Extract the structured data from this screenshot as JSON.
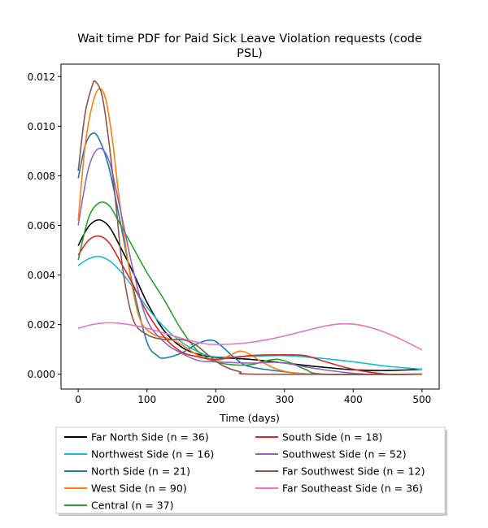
{
  "chart_data": {
    "type": "line",
    "title_line1": "Wait time PDF for Paid Sick Leave Violation  requests (code",
    "title_line2": "PSL)",
    "xlabel": "Time (days)",
    "ylabel": "",
    "xlim": [
      -25,
      525
    ],
    "ylim": [
      -0.0006,
      0.0125
    ],
    "xticks": [
      0,
      100,
      200,
      300,
      400,
      500
    ],
    "xtick_labels": [
      "0",
      "100",
      "200",
      "300",
      "400",
      "500"
    ],
    "yticks": [
      0.0,
      0.002,
      0.004,
      0.006,
      0.008,
      0.01,
      0.012
    ],
    "ytick_labels": [
      "0.000",
      "0.002",
      "0.004",
      "0.006",
      "0.008",
      "0.010",
      "0.012"
    ],
    "grid": false,
    "legend_placement": "below",
    "series": [
      {
        "name": "Far North Side (n = 36)",
        "color": "#000000",
        "points": [
          [
            0,
            0.00518
          ],
          [
            15,
            0.00595
          ],
          [
            30,
            0.00622
          ],
          [
            45,
            0.00595
          ],
          [
            60,
            0.0052
          ],
          [
            80,
            0.0041
          ],
          [
            100,
            0.0029
          ],
          [
            125,
            0.00175
          ],
          [
            150,
            0.0011
          ],
          [
            175,
            0.0008
          ],
          [
            200,
            0.00068
          ],
          [
            250,
            0.0006
          ],
          [
            300,
            0.00045
          ],
          [
            350,
            0.0003
          ],
          [
            400,
            0.00018
          ],
          [
            450,
            0.00015
          ],
          [
            500,
            0.0002
          ]
        ]
      },
      {
        "name": "Northwest Side (n = 16)",
        "color": "#17becf",
        "points": [
          [
            0,
            0.00438
          ],
          [
            15,
            0.00465
          ],
          [
            30,
            0.00475
          ],
          [
            45,
            0.00458
          ],
          [
            60,
            0.0042
          ],
          [
            80,
            0.0035
          ],
          [
            100,
            0.0027
          ],
          [
            125,
            0.0019
          ],
          [
            150,
            0.0013
          ],
          [
            175,
            0.0009
          ],
          [
            200,
            0.0007
          ],
          [
            250,
            0.00072
          ],
          [
            300,
            0.00075
          ],
          [
            350,
            0.00065
          ],
          [
            400,
            0.0005
          ],
          [
            450,
            0.00032
          ],
          [
            500,
            0.0002
          ]
        ]
      },
      {
        "name": "North Side (n = 21)",
        "color": "#1f77b4",
        "points": [
          [
            0,
            0.0079
          ],
          [
            10,
            0.0092
          ],
          [
            20,
            0.0097
          ],
          [
            30,
            0.0095
          ],
          [
            45,
            0.0083
          ],
          [
            60,
            0.0063
          ],
          [
            80,
            0.0035
          ],
          [
            100,
            0.0013
          ],
          [
            115,
            0.00075
          ],
          [
            125,
            0.00065
          ],
          [
            150,
            0.00085
          ],
          [
            175,
            0.00125
          ],
          [
            195,
            0.00137
          ],
          [
            210,
            0.0011
          ],
          [
            230,
            0.0006
          ],
          [
            250,
            0.0003
          ],
          [
            300,
            0.0001
          ],
          [
            350,
            0.0
          ],
          [
            500,
            0.0
          ]
        ]
      },
      {
        "name": "West Side (n = 90)",
        "color": "#ff7f0e",
        "points": [
          [
            0,
            0.0062
          ],
          [
            10,
            0.0092
          ],
          [
            20,
            0.0108
          ],
          [
            30,
            0.0115
          ],
          [
            40,
            0.0111
          ],
          [
            50,
            0.0094
          ],
          [
            60,
            0.007
          ],
          [
            75,
            0.0041
          ],
          [
            90,
            0.0022
          ],
          [
            110,
            0.0016
          ],
          [
            130,
            0.00145
          ],
          [
            150,
            0.0012
          ],
          [
            175,
            0.00075
          ],
          [
            200,
            0.00055
          ],
          [
            220,
            0.00075
          ],
          [
            235,
            0.00093
          ],
          [
            250,
            0.0008
          ],
          [
            270,
            0.00045
          ],
          [
            300,
            0.00012
          ],
          [
            350,
            0.0
          ],
          [
            500,
            0.0
          ]
        ]
      },
      {
        "name": "Central (n = 37)",
        "color": "#2ca02c",
        "points": [
          [
            0,
            0.0046
          ],
          [
            15,
            0.0063
          ],
          [
            30,
            0.0069
          ],
          [
            45,
            0.0068
          ],
          [
            60,
            0.0061
          ],
          [
            80,
            0.0051
          ],
          [
            100,
            0.0041
          ],
          [
            125,
            0.003
          ],
          [
            150,
            0.0018
          ],
          [
            175,
            0.0009
          ],
          [
            200,
            0.0005
          ],
          [
            225,
            0.00038
          ],
          [
            250,
            0.00038
          ],
          [
            275,
            0.00055
          ],
          [
            290,
            0.0006
          ],
          [
            310,
            0.00045
          ],
          [
            330,
            0.0002
          ],
          [
            360,
            0.0
          ],
          [
            500,
            0.0
          ]
        ]
      },
      {
        "name": "South Side (n = 18)",
        "color": "#d62728",
        "points": [
          [
            0,
            0.0048
          ],
          [
            15,
            0.0054
          ],
          [
            30,
            0.00557
          ],
          [
            45,
            0.0053
          ],
          [
            60,
            0.0046
          ],
          [
            80,
            0.0036
          ],
          [
            100,
            0.0025
          ],
          [
            125,
            0.0015
          ],
          [
            150,
            0.0009
          ],
          [
            175,
            0.0007
          ],
          [
            200,
            0.0006
          ],
          [
            250,
            0.00075
          ],
          [
            300,
            0.00078
          ],
          [
            330,
            0.00075
          ],
          [
            360,
            0.0005
          ],
          [
            400,
            0.0002
          ],
          [
            450,
            0.0
          ],
          [
            500,
            0.0
          ]
        ]
      },
      {
        "name": "Southwest Side (n = 52)",
        "color": "#9467bd",
        "points": [
          [
            0,
            0.006
          ],
          [
            15,
            0.0083
          ],
          [
            30,
            0.0091
          ],
          [
            45,
            0.0086
          ],
          [
            60,
            0.0068
          ],
          [
            80,
            0.0042
          ],
          [
            100,
            0.0022
          ],
          [
            125,
            0.0013
          ],
          [
            150,
            0.00085
          ],
          [
            175,
            0.00055
          ],
          [
            200,
            0.0005
          ],
          [
            250,
            0.00045
          ],
          [
            280,
            0.00048
          ],
          [
            300,
            0.00045
          ],
          [
            340,
            0.00025
          ],
          [
            380,
            0.0001
          ],
          [
            420,
            0.0
          ],
          [
            500,
            0.0
          ]
        ]
      },
      {
        "name": "Far Southwest Side (n = 12)",
        "color": "#8c564b",
        "points": [
          [
            0,
            0.0082
          ],
          [
            10,
            0.0105
          ],
          [
            20,
            0.0116
          ],
          [
            25,
            0.0118
          ],
          [
            35,
            0.0112
          ],
          [
            45,
            0.0093
          ],
          [
            55,
            0.0068
          ],
          [
            65,
            0.0042
          ],
          [
            80,
            0.0022
          ],
          [
            100,
            0.0016
          ],
          [
            125,
            0.0014
          ],
          [
            150,
            0.0014
          ],
          [
            170,
            0.0012
          ],
          [
            190,
            0.00075
          ],
          [
            210,
            0.00035
          ],
          [
            235,
            0.0001
          ],
          [
            260,
            0.0
          ],
          [
            500,
            0.0
          ]
        ]
      },
      {
        "name": "Far Southeast Side (n = 36)",
        "color": "#e377c2",
        "points": [
          [
            0,
            0.00185
          ],
          [
            20,
            0.002
          ],
          [
            40,
            0.00207
          ],
          [
            60,
            0.00205
          ],
          [
            90,
            0.00192
          ],
          [
            120,
            0.0017
          ],
          [
            150,
            0.00145
          ],
          [
            180,
            0.00125
          ],
          [
            200,
            0.0012
          ],
          [
            240,
            0.00125
          ],
          [
            280,
            0.00142
          ],
          [
            320,
            0.00168
          ],
          [
            360,
            0.00195
          ],
          [
            385,
            0.00203
          ],
          [
            410,
            0.00198
          ],
          [
            440,
            0.00175
          ],
          [
            470,
            0.0014
          ],
          [
            500,
            0.00098
          ]
        ]
      }
    ]
  }
}
